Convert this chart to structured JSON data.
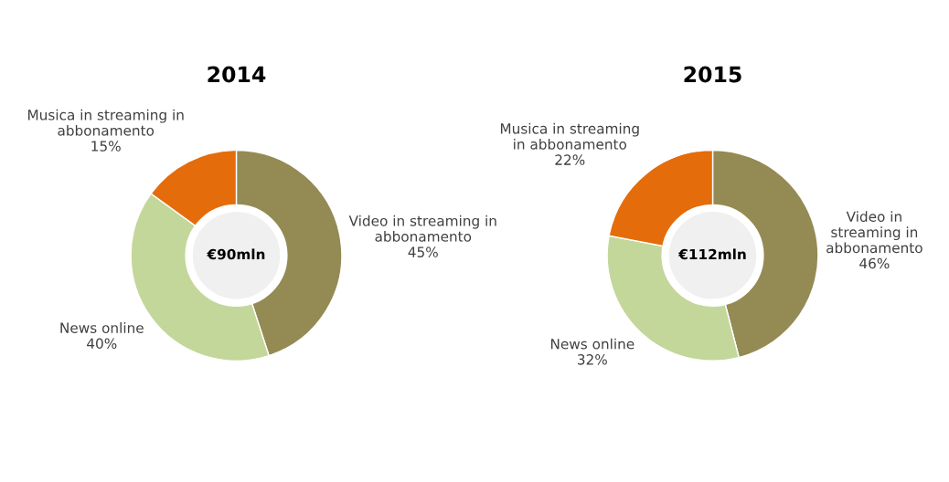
{
  "chart_data": [
    {
      "type": "donut",
      "title": "2014",
      "categories": [
        "Video in streaming in\nabbonamento",
        "News online",
        "Musica in streaming in\nabbonamento"
      ],
      "values": [
        45,
        40,
        15
      ],
      "colors": [
        "#948a54",
        "#c4d79b",
        "#e46c0a"
      ],
      "value_labels": [
        "45%",
        "40%",
        "15%"
      ],
      "annotations": [
        "€90mln"
      ]
    },
    {
      "type": "donut",
      "title": "2015",
      "categories": [
        "Video in\nstreaming in\nabbonamento",
        "News online",
        "Musica in streaming\nin abbonamento"
      ],
      "values": [
        46,
        32,
        22
      ],
      "colors": [
        "#948a54",
        "#c4d79b",
        "#e46c0a"
      ],
      "value_labels": [
        "46%",
        "32%",
        "22%"
      ],
      "annotations": [
        "€112mln"
      ]
    }
  ]
}
